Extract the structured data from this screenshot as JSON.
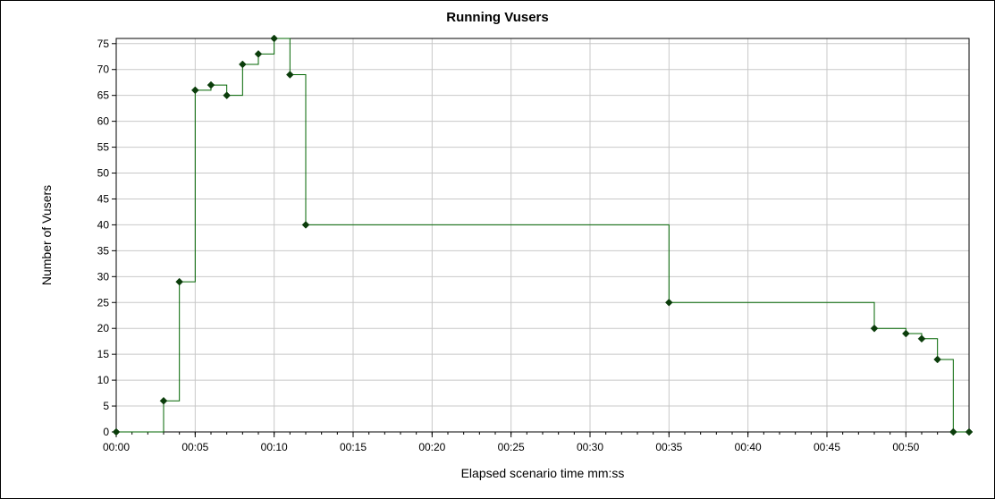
{
  "chart_data": {
    "type": "line",
    "title": "Running Vusers",
    "xlabel": "Elapsed scenario time mm:ss",
    "ylabel": "Number of Vusers",
    "step": true,
    "grid": true,
    "legend": "none",
    "xlim": [
      "00:00",
      "00:54"
    ],
    "ylim": [
      0,
      76
    ],
    "x_ticks": [
      "00:00",
      "00:05",
      "00:10",
      "00:15",
      "00:20",
      "00:25",
      "00:30",
      "00:35",
      "00:40",
      "00:45",
      "00:50"
    ],
    "y_ticks": [
      0,
      5,
      10,
      15,
      20,
      25,
      30,
      35,
      40,
      45,
      50,
      55,
      60,
      65,
      70,
      75
    ],
    "series": [
      {
        "color": "#006400",
        "marker_color": "#0b3d0b",
        "x": [
          "00:00",
          "00:03",
          "00:04",
          "00:05",
          "00:06",
          "00:07",
          "00:08",
          "00:09",
          "00:10",
          "00:11",
          "00:12",
          "00:35",
          "00:48",
          "00:50",
          "00:51",
          "00:52",
          "00:53",
          "00:54"
        ],
        "y": [
          0,
          6,
          29,
          66,
          67,
          65,
          71,
          73,
          76,
          69,
          40,
          25,
          20,
          19,
          18,
          14,
          0,
          0
        ]
      }
    ]
  }
}
